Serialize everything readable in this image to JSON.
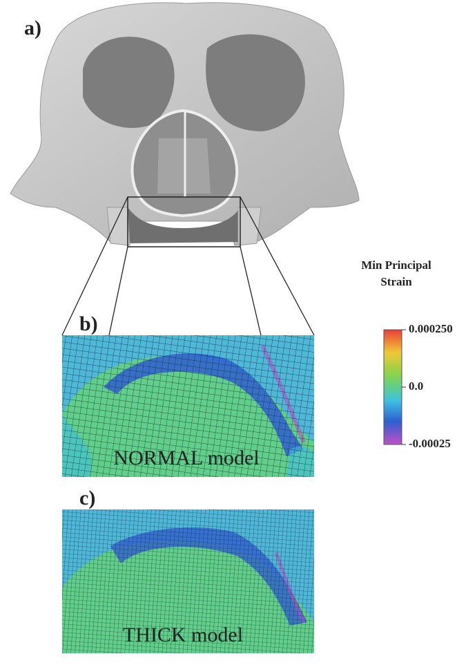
{
  "panels": {
    "a": "a)",
    "b": "b)",
    "c": "c)"
  },
  "captions": {
    "normal": "NORMAL model",
    "thick": "THICK model"
  },
  "colorbar": {
    "title": "Min Principal Strain",
    "lim": [
      -0.00025,
      0.00025
    ],
    "ticks": [
      {
        "value": 0.00025,
        "label": "0.000250"
      },
      {
        "value": 0,
        "label": "0.0"
      },
      -0.00025
    ]
  }
}
